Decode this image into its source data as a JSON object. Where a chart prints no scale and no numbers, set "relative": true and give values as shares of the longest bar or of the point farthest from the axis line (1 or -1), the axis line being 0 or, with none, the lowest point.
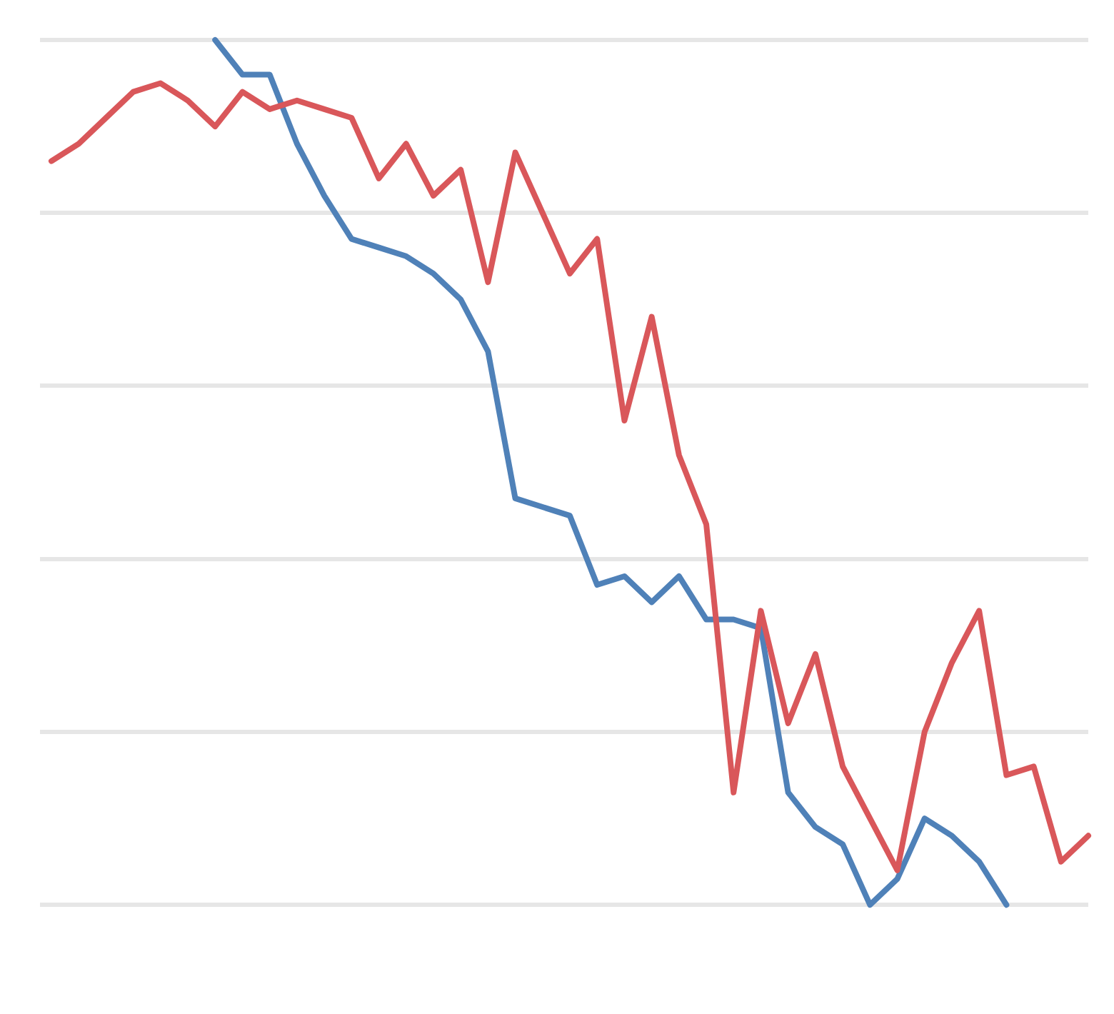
{
  "chart_data": {
    "type": "line",
    "relative": true,
    "grid": "y",
    "legend": false,
    "marker": "none",
    "line_style": "solid",
    "categories": [
      null,
      null,
      null,
      null,
      null,
      null,
      null,
      null,
      null,
      null,
      null,
      null,
      null,
      null,
      null,
      null,
      null,
      null,
      null,
      null,
      null,
      null,
      null,
      null,
      null,
      null,
      null,
      null,
      null,
      null,
      null,
      null,
      null,
      null,
      null,
      null,
      null,
      null,
      null
    ],
    "series": [
      {
        "color": "#d9575a",
        "values": [
          0.86,
          0.88,
          0.91,
          0.94,
          0.95,
          0.93,
          0.9,
          0.94,
          0.92,
          0.93,
          0.92,
          0.91,
          0.84,
          0.88,
          0.82,
          0.85,
          0.72,
          0.87,
          0.8,
          0.73,
          0.77,
          0.56,
          0.68,
          0.52,
          0.44,
          0.13,
          0.34,
          0.21,
          0.29,
          0.16,
          0.1,
          0.04,
          0.2,
          0.28,
          0.34,
          0.15,
          0.16,
          0.05,
          0.08
        ]
      },
      {
        "color": "#4f81b8",
        "values": [
          null,
          null,
          null,
          null,
          null,
          null,
          1.0,
          0.96,
          0.96,
          0.88,
          0.82,
          0.77,
          0.76,
          0.75,
          0.73,
          0.7,
          0.64,
          0.47,
          0.46,
          0.45,
          0.37,
          0.38,
          0.35,
          0.38,
          0.33,
          0.33,
          0.32,
          0.13,
          0.09,
          0.07,
          0.0,
          0.03,
          0.1,
          0.08,
          0.05,
          0.0,
          null,
          null,
          null
        ]
      }
    ]
  }
}
